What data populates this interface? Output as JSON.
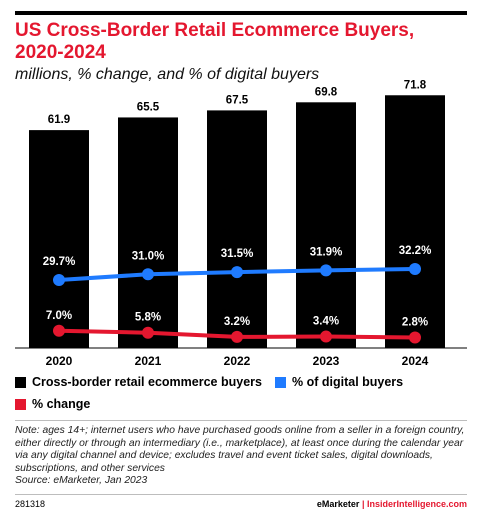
{
  "title": "US Cross-Border Retail Ecommerce Buyers, 2020-2024",
  "subtitle": "millions, % change, and % of digital buyers",
  "colors": {
    "bar": "#000000",
    "digital": "#1f7bff",
    "change": "#e4172f",
    "title": "#e4172f"
  },
  "legend": {
    "bars": "Cross-border retail ecommerce buyers",
    "digital": "% of digital buyers",
    "change": "% change"
  },
  "note": "Note: ages 14+; internet users who have purchased goods online from a seller in a foreign country, either directly or through an intermediary (i.e., marketplace), at least once during the calendar year via any digital channel and device; excludes travel and event ticket sales, digital downloads, subscriptions, and other services",
  "source": "Source: eMarketer, Jan 2023",
  "footer": {
    "id": "281318",
    "brand_a": "eMarketer",
    "brand_sep": " | ",
    "brand_b": "InsiderIntelligence.com"
  },
  "chart_data": {
    "type": "bar",
    "categories": [
      "2020",
      "2021",
      "2022",
      "2023",
      "2024"
    ],
    "series": [
      {
        "name": "Cross-border retail ecommerce buyers",
        "type": "bar",
        "values": [
          61.9,
          65.5,
          67.5,
          69.8,
          71.8
        ],
        "labels": [
          "61.9",
          "65.5",
          "67.5",
          "69.8",
          "71.8"
        ]
      },
      {
        "name": "% of digital buyers",
        "type": "line",
        "values": [
          29.7,
          31.0,
          31.5,
          31.9,
          32.2
        ],
        "labels": [
          "29.7%",
          "31.0%",
          "31.5%",
          "31.9%",
          "32.2%"
        ]
      },
      {
        "name": "% change",
        "type": "line",
        "values": [
          7.0,
          5.8,
          3.2,
          3.4,
          2.8
        ],
        "labels": [
          "7.0%",
          "5.8%",
          "3.2%",
          "3.4%",
          "2.8%"
        ]
      }
    ],
    "ylim": [
      0,
      75
    ],
    "legend_position": "bottom"
  }
}
